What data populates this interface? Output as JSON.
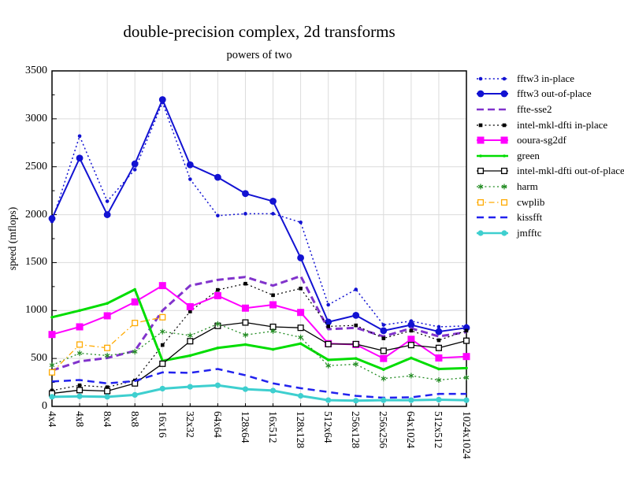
{
  "title": "double-precision complex, 2d transforms",
  "subtitle": "powers of two",
  "ylabel": "speed (mflops)",
  "chart_data": {
    "type": "line",
    "title": "double-precision complex, 2d transforms",
    "subtitle": "powers of two",
    "ylabel": "speed (mflops)",
    "xlabel": "",
    "ylim": [
      0,
      3500
    ],
    "yticks": [
      0,
      500,
      1000,
      1500,
      2000,
      2500,
      3000,
      3500
    ],
    "grid": true,
    "legend_position": "right-outside",
    "categories": [
      "4x4",
      "4x8",
      "8x4",
      "8x8",
      "16x16",
      "32x32",
      "64x64",
      "128x64",
      "16x512",
      "128x128",
      "512x64",
      "256x128",
      "256x256",
      "64x1024",
      "512x512",
      "1024x1024"
    ],
    "series": [
      {
        "name": "fftw3 in-place",
        "color": "#1212d2",
        "dash": "dotted",
        "marker": "circle-small",
        "width": 1.5,
        "values": [
          1930,
          2820,
          2140,
          2470,
          3170,
          2370,
          1990,
          2010,
          2010,
          1920,
          1060,
          1220,
          850,
          890,
          830,
          840
        ]
      },
      {
        "name": "fftw3 out-of-place",
        "color": "#1212d2",
        "dash": "solid",
        "marker": "circle-large",
        "width": 2,
        "values": [
          1960,
          2590,
          2000,
          2530,
          3200,
          2520,
          2390,
          2220,
          2140,
          1550,
          880,
          950,
          790,
          850,
          780,
          820
        ]
      },
      {
        "name": "ffte-sse2",
        "color": "#8133cc",
        "dash": "dashed",
        "marker": "none",
        "width": 3,
        "values": [
          375,
          470,
          505,
          580,
          1000,
          1260,
          1320,
          1350,
          1260,
          1360,
          805,
          820,
          730,
          815,
          730,
          775
        ]
      },
      {
        "name": "intel-mkl-dfti in-place",
        "color": "#000000",
        "dash": "dotted",
        "marker": "square-small-filled",
        "width": 1.2,
        "values": [
          165,
          220,
          200,
          270,
          640,
          990,
          1215,
          1280,
          1160,
          1230,
          835,
          845,
          710,
          790,
          690,
          790
        ]
      },
      {
        "name": "ooura-sg2df",
        "color": "#ff00ff",
        "dash": "solid",
        "marker": "square-large-filled",
        "width": 2,
        "values": [
          750,
          830,
          945,
          1090,
          1260,
          1040,
          1155,
          1025,
          1060,
          980,
          655,
          645,
          500,
          700,
          505,
          520
        ]
      },
      {
        "name": "green",
        "color": "#00dd00",
        "dash": "solid",
        "marker": "circle-tiny",
        "width": 3,
        "values": [
          930,
          1000,
          1075,
          1220,
          475,
          530,
          610,
          645,
          595,
          655,
          485,
          500,
          385,
          505,
          390,
          400
        ]
      },
      {
        "name": "intel-mkl-dfti out-of-place",
        "color": "#000000",
        "dash": "solid",
        "marker": "square-open",
        "width": 1.3,
        "values": [
          135,
          170,
          160,
          240,
          445,
          680,
          840,
          875,
          830,
          820,
          650,
          650,
          580,
          640,
          610,
          685
        ]
      },
      {
        "name": "harm",
        "color": "#228b22",
        "dash": "dotted",
        "marker": "star",
        "width": 1.3,
        "values": [
          430,
          555,
          530,
          570,
          780,
          740,
          860,
          745,
          785,
          720,
          425,
          440,
          290,
          320,
          275,
          300
        ]
      },
      {
        "name": "cwplib",
        "color": "#ffaa00",
        "dash": "dashdot",
        "marker": "square-open",
        "width": 1.3,
        "values": [
          355,
          645,
          610,
          870,
          930
        ]
      },
      {
        "name": "kissfft",
        "color": "#2222ee",
        "dash": "long-dash",
        "marker": "none",
        "width": 2.5,
        "values": [
          260,
          275,
          240,
          265,
          355,
          350,
          390,
          325,
          240,
          190,
          150,
          110,
          90,
          95,
          130,
          130
        ]
      },
      {
        "name": "jmfftc",
        "color": "#3ecfcf",
        "dash": "solid",
        "marker": "circle-medium",
        "width": 3,
        "values": [
          100,
          105,
          100,
          120,
          185,
          205,
          220,
          180,
          165,
          110,
          65,
          60,
          65,
          65,
          70,
          65
        ]
      }
    ]
  }
}
